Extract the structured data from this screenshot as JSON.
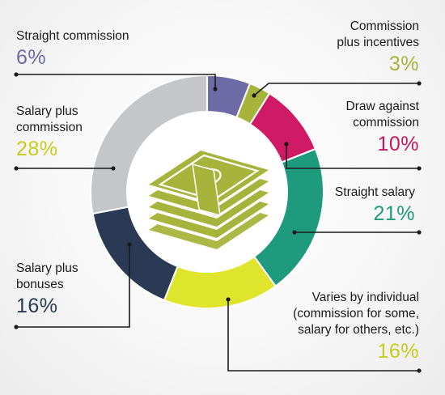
{
  "chart_data": {
    "type": "pie",
    "style": "donut",
    "title": "",
    "center_icon": "money-stack-icon",
    "slices": [
      {
        "label": "Straight commission",
        "value": 6,
        "display": "6%",
        "color": "#6d6aa6",
        "label_color": "#6d6aa6"
      },
      {
        "label": "Commission plus incentives",
        "value": 3,
        "display": "3%",
        "color": "#a7b43c",
        "label_color": "#a7b43c"
      },
      {
        "label": "Draw against commission",
        "value": 10,
        "display": "10%",
        "color": "#d11a66",
        "label_color": "#c41a5e"
      },
      {
        "label": "Straight salary",
        "value": 21,
        "display": "21%",
        "color": "#1e9a7c",
        "label_color": "#1e9a7c"
      },
      {
        "label": "Varies by individual (commission for some, salary for others, etc.)",
        "value": 16,
        "display": "16%",
        "color": "#dfe42c",
        "label_color": "#c7cc1c"
      },
      {
        "label": "Salary plus bonuses",
        "value": 16,
        "display": "16%",
        "color": "#2a3a55",
        "label_color": "#2a3a55"
      },
      {
        "label": "Salary plus commission",
        "value": 28,
        "display": "28%",
        "color": "#c4c6c9",
        "label_color": "#c7cc1c"
      }
    ],
    "labels": {
      "straight_commission": {
        "lines": [
          "Straight commission"
        ],
        "pct": "6%"
      },
      "commission_plus_incentives": {
        "lines": [
          "Commission",
          "plus incentives"
        ],
        "pct": "3%"
      },
      "draw_against_commission": {
        "lines": [
          "Draw against",
          "commission"
        ],
        "pct": "10%"
      },
      "straight_salary": {
        "lines": [
          "Straight salary"
        ],
        "pct": "21%"
      },
      "varies_by_individual": {
        "lines": [
          "Varies by individual",
          "(commission for some,",
          "salary for others, etc.)"
        ],
        "pct": "16%"
      },
      "salary_plus_bonuses": {
        "lines": [
          "Salary plus",
          "bonuses"
        ],
        "pct": "16%"
      },
      "salary_plus_commission": {
        "lines": [
          "Salary plus",
          "commission"
        ],
        "pct": "28%"
      }
    }
  }
}
